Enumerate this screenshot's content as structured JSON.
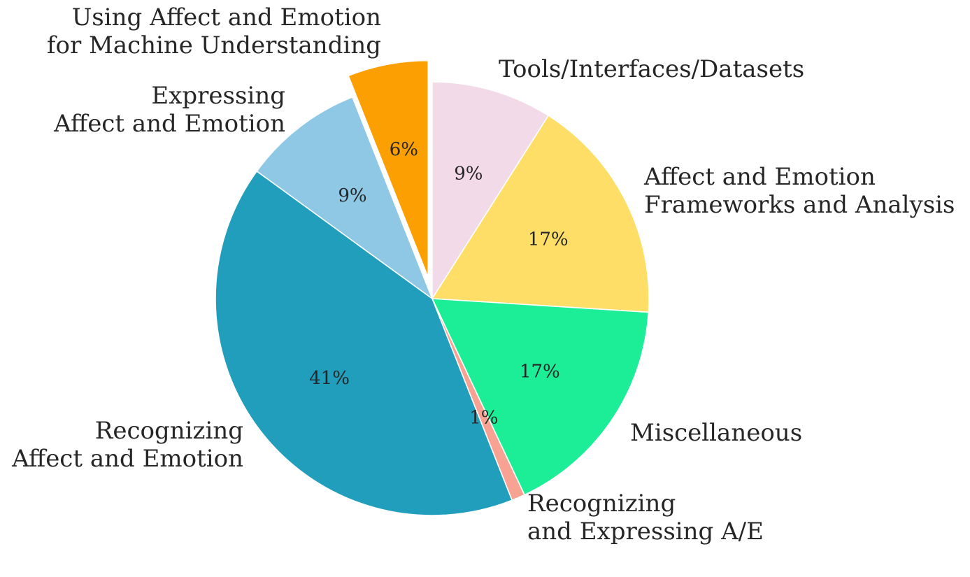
{
  "chart_data": {
    "type": "pie",
    "start_angle_deg": 90,
    "direction": "clockwise",
    "slices": [
      {
        "key": "tools",
        "label": [
          "Tools/Interfaces/Datasets"
        ],
        "value": 9,
        "pct_label": "9%",
        "color": "#F2DAE8",
        "explode": false
      },
      {
        "key": "frameworks",
        "label": [
          "Affect and Emotion",
          "Frameworks and Analysis"
        ],
        "value": 17,
        "pct_label": "17%",
        "color": "#FFDE67",
        "explode": false
      },
      {
        "key": "misc",
        "label": [
          "Miscellaneous"
        ],
        "value": 17,
        "pct_label": "17%",
        "color": "#1CEE97",
        "explode": false
      },
      {
        "key": "rec-expr",
        "label": [
          "Recognizing",
          "and Expressing A/E"
        ],
        "value": 1,
        "pct_label": "1%",
        "color": "#F7A293",
        "explode": false
      },
      {
        "key": "recognizing",
        "label": [
          "Recognizing",
          "Affect and Emotion"
        ],
        "value": 41,
        "pct_label": "41%",
        "color": "#219EBC",
        "explode": false
      },
      {
        "key": "expressing",
        "label": [
          "Expressing",
          "Affect and Emotion"
        ],
        "value": 9,
        "pct_label": "9%",
        "color": "#8FC8E5",
        "explode": false
      },
      {
        "key": "using",
        "label": [
          "Using Affect and Emotion",
          "for Machine Understanding"
        ],
        "value": 6,
        "pct_label": "6%",
        "color": "#FB9F03",
        "explode": true
      }
    ]
  }
}
